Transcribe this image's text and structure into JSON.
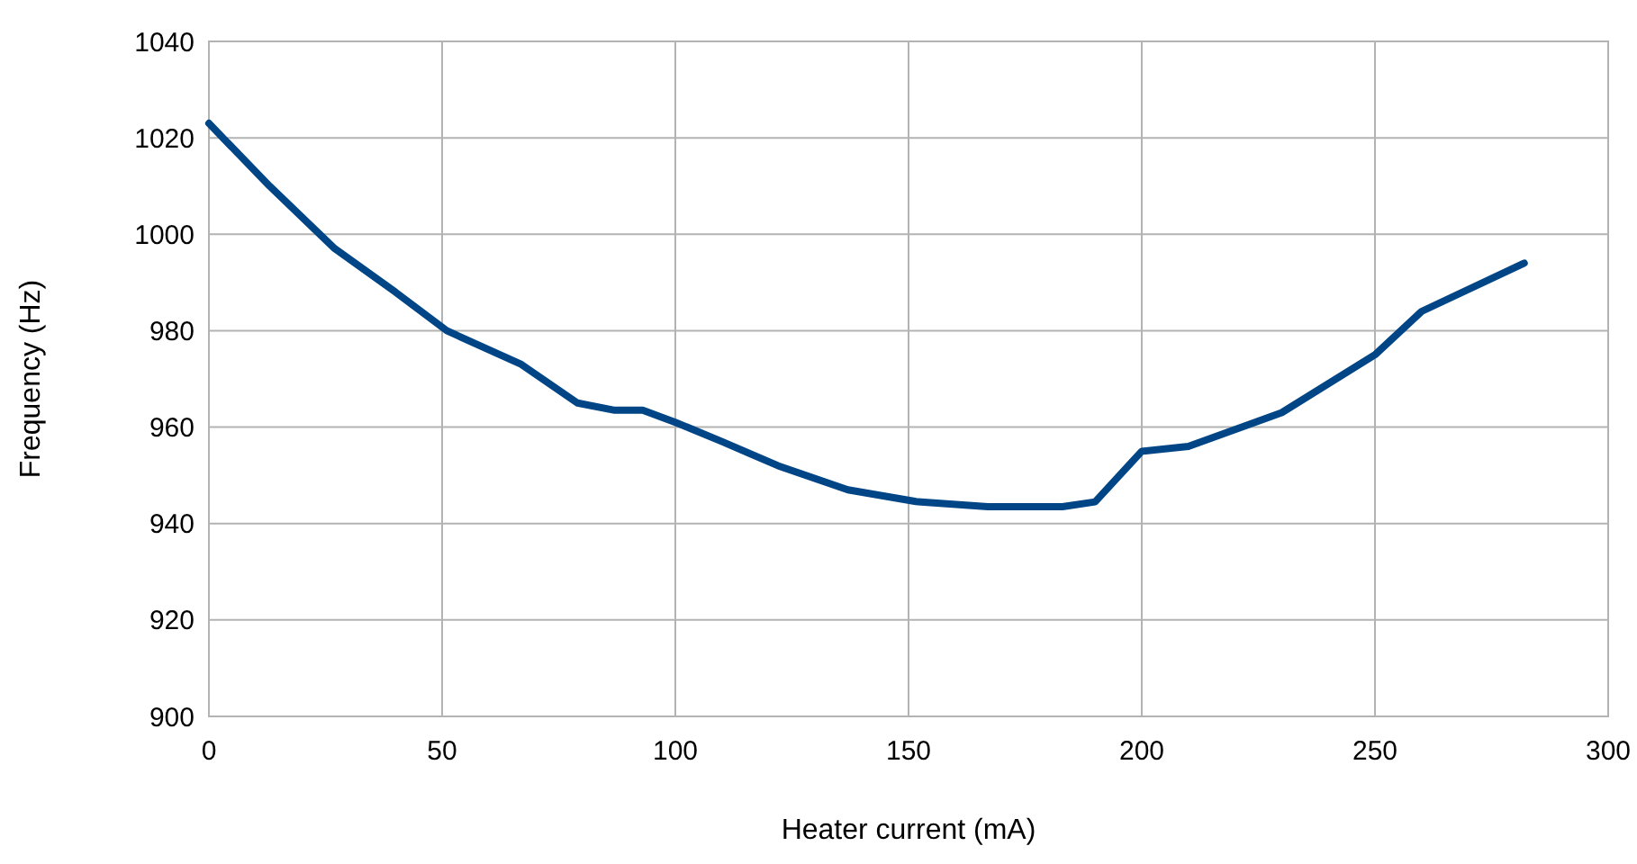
{
  "chart_data": {
    "type": "line",
    "xlabel": "Heater current (mA)",
    "ylabel": "Frequency (Hz)",
    "x": [
      0,
      13,
      27,
      40,
      51,
      67,
      79,
      87,
      93,
      100,
      110,
      122,
      137,
      152,
      167,
      183,
      190,
      200,
      210,
      230,
      250,
      260,
      282
    ],
    "series": [
      {
        "color": "#004586",
        "values": [
          1023,
          1010,
          997,
          988,
          980,
          973,
          965,
          963.5,
          963.5,
          961,
          957,
          952,
          947,
          944.5,
          943.5,
          943.5,
          944.5,
          955,
          956,
          963,
          975,
          984,
          994
        ]
      }
    ],
    "xlim": [
      0,
      300
    ],
    "xticks": [
      0,
      50,
      100,
      150,
      200,
      250,
      300
    ],
    "ylim": [
      900,
      1040
    ],
    "yticks": [
      900,
      920,
      940,
      960,
      980,
      1000,
      1020,
      1040
    ],
    "grid": true,
    "marker": "none",
    "line_style": "solid"
  }
}
